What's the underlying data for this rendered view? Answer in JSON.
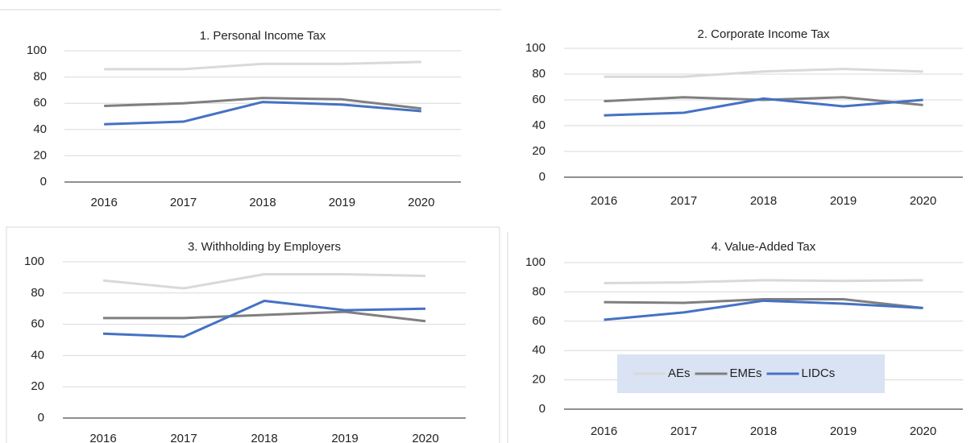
{
  "chart_data": [
    {
      "type": "line",
      "title": "1. Personal Income Tax",
      "categories": [
        "2016",
        "2017",
        "2018",
        "2019",
        "2020"
      ],
      "series": [
        {
          "color": "#d9d9d9",
          "values": [
            86,
            86,
            90,
            90,
            91.5
          ]
        },
        {
          "color": "#7f7f7f",
          "values": [
            58,
            60,
            64,
            63,
            56
          ]
        },
        {
          "color": "#4472c4",
          "values": [
            44,
            46,
            61,
            59,
            54
          ]
        }
      ],
      "ylim": [
        0,
        100
      ],
      "yticks": [
        0,
        20,
        40,
        60,
        80,
        100
      ],
      "grid": true
    },
    {
      "type": "line",
      "title": "2. Corporate Income Tax",
      "categories": [
        "2016",
        "2017",
        "2018",
        "2019",
        "2020"
      ],
      "series": [
        {
          "color": "#d9d9d9",
          "values": [
            78,
            78,
            82,
            84,
            82
          ]
        },
        {
          "color": "#7f7f7f",
          "values": [
            59,
            62,
            60,
            62,
            56
          ]
        },
        {
          "color": "#4472c4",
          "values": [
            48,
            50,
            61,
            55,
            60
          ]
        }
      ],
      "ylim": [
        0,
        100
      ],
      "yticks": [
        0,
        20,
        40,
        60,
        80,
        100
      ],
      "grid": true
    },
    {
      "type": "line",
      "title": "3. Withholding by Employers",
      "categories": [
        "2016",
        "2017",
        "2018",
        "2019",
        "2020"
      ],
      "series": [
        {
          "color": "#d9d9d9",
          "values": [
            88,
            83,
            92,
            92,
            91
          ]
        },
        {
          "color": "#7f7f7f",
          "values": [
            64,
            64,
            66,
            68,
            62
          ]
        },
        {
          "color": "#4472c4",
          "values": [
            54,
            52,
            75,
            69,
            70
          ]
        }
      ],
      "ylim": [
        0,
        100
      ],
      "yticks": [
        0,
        20,
        40,
        60,
        80,
        100
      ],
      "grid": true
    },
    {
      "type": "line",
      "title": "4. Value-Added Tax",
      "categories": [
        "2016",
        "2017",
        "2018",
        "2019",
        "2020"
      ],
      "series": [
        {
          "name": "AEs",
          "color": "#d9d9d9",
          "values": [
            86,
            86.5,
            88,
            87.5,
            88
          ]
        },
        {
          "name": "EMEs",
          "color": "#7f7f7f",
          "values": [
            73,
            72.5,
            75,
            75,
            69
          ]
        },
        {
          "name": "LIDCs",
          "color": "#4472c4",
          "values": [
            61,
            66,
            74,
            72,
            69
          ]
        }
      ],
      "ylim": [
        0,
        100
      ],
      "yticks": [
        0,
        20,
        40,
        60,
        80,
        100
      ],
      "grid": true,
      "legend": "lower-center"
    }
  ]
}
